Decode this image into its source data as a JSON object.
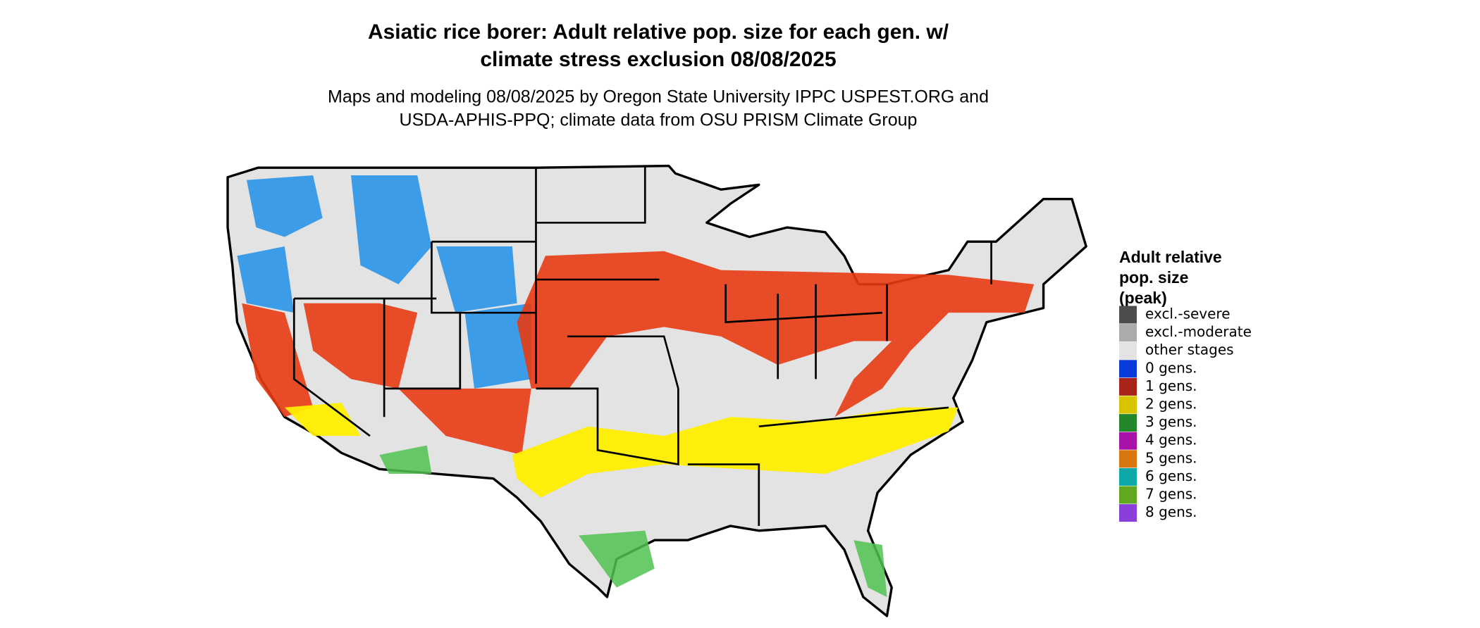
{
  "header": {
    "title_line1": "Asiatic rice borer: Adult relative pop. size for each gen. w/",
    "title_line2": "climate stress exclusion 08/08/2025",
    "subtitle_line1": "Maps and modeling 08/08/2025 by Oregon State University IPPC USPEST.ORG and",
    "subtitle_line2": "USDA-APHIS-PPQ; climate data from OSU PRISM Climate Group"
  },
  "legend": {
    "title_lines": [
      "Adult relative",
      "pop. size",
      "(peak)"
    ],
    "items": [
      {
        "label": "excl.-severe",
        "color": "#4d4d4d"
      },
      {
        "label": "excl.-moderate",
        "color": "#ababab"
      },
      {
        "label": "other stages",
        "color": "#e3e3e3"
      },
      {
        "label": "0 gens.",
        "color": "#0a3ad9"
      },
      {
        "label": "1 gens.",
        "color": "#a82418"
      },
      {
        "label": "2 gens.",
        "color": "#d9c400"
      },
      {
        "label": "3 gens.",
        "color": "#23862a"
      },
      {
        "label": "4 gens.",
        "color": "#a812a8"
      },
      {
        "label": "5 gens.",
        "color": "#d9770f"
      },
      {
        "label": "6 gens.",
        "color": "#0fa8a8"
      },
      {
        "label": "7 gens.",
        "color": "#5fa81f"
      },
      {
        "label": "8 gens.",
        "color": "#8a3fdb"
      }
    ]
  }
}
